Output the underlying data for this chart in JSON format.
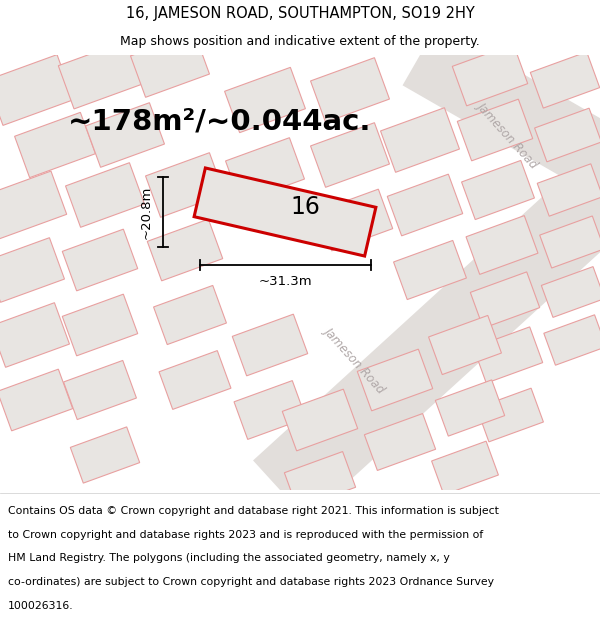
{
  "title_line1": "16, JAMESON ROAD, SOUTHAMPTON, SO19 2HY",
  "title_line2": "Map shows position and indicative extent of the property.",
  "area_text": "~178m²/~0.044ac.",
  "property_number": "16",
  "dim_width": "~31.3m",
  "dim_height": "~20.8m",
  "map_bg": "#f0eded",
  "building_fill": "#e8e5e2",
  "building_edge": "#e8a0a0",
  "highlight_edge": "#cc0000",
  "prop_fill": "#e8e5e2",
  "road_text_color": "#b0a8a8",
  "footer_lines": [
    "Contains OS data © Crown copyright and database right 2021. This information is subject",
    "to Crown copyright and database rights 2023 and is reproduced with the permission of",
    "HM Land Registry. The polygons (including the associated geometry, namely x, y",
    "co-ordinates) are subject to Crown copyright and database rights 2023 Ordnance Survey",
    "100026316."
  ],
  "title_fontsize": 10.5,
  "subtitle_fontsize": 9,
  "area_fontsize": 21,
  "number_fontsize": 17,
  "dim_fontsize": 9.5,
  "footer_fontsize": 7.8
}
